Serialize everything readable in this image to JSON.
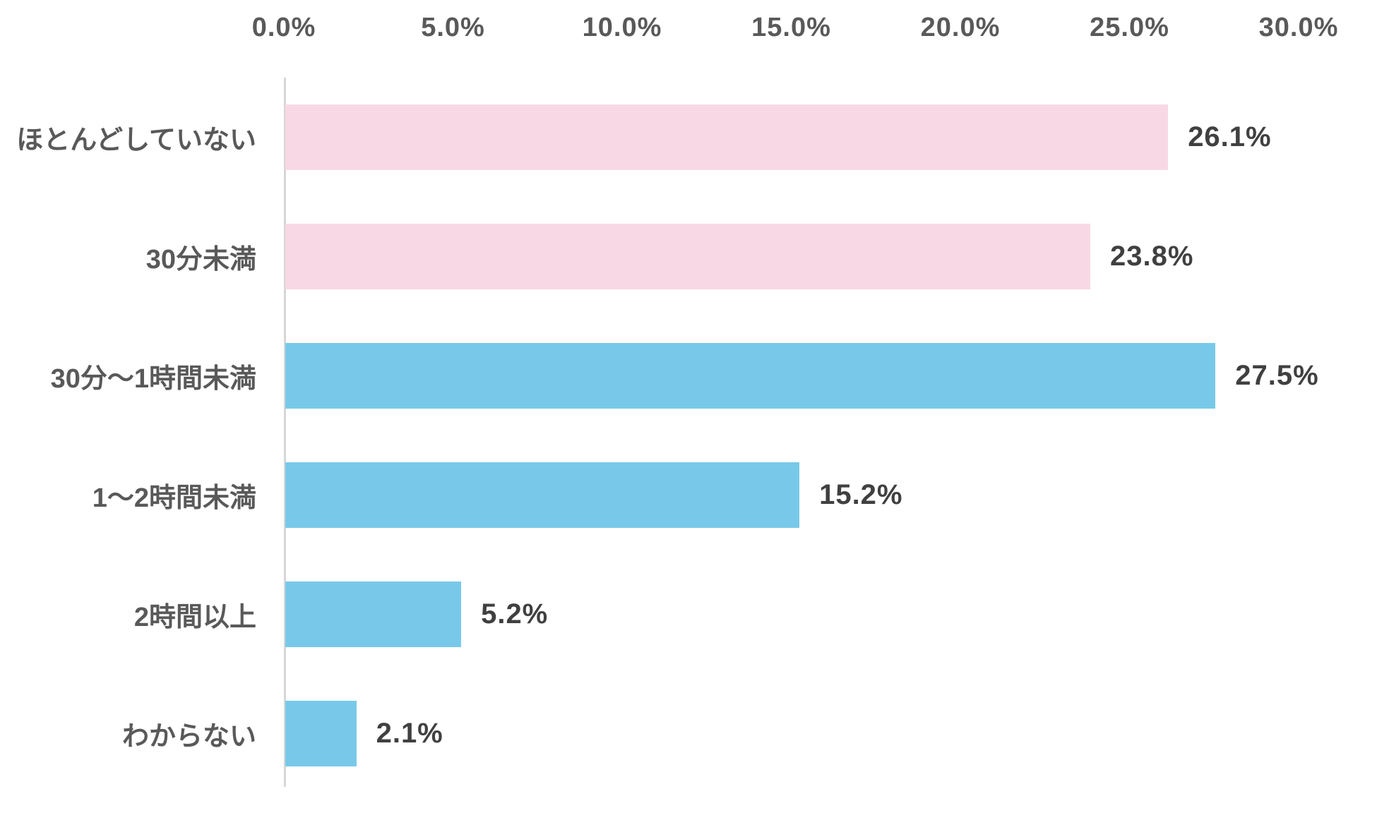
{
  "chart_data": {
    "type": "bar",
    "orientation": "horizontal",
    "title": "",
    "categories": [
      "ほとんどしていない",
      "30分未満",
      "30分～1時間未満",
      "1～2時間未満",
      "2時間以上",
      "わからない"
    ],
    "values": [
      26.1,
      23.8,
      27.5,
      15.2,
      5.2,
      2.1
    ],
    "value_labels": [
      "26.1%",
      "23.8%",
      "27.5%",
      "15.2%",
      "5.2%",
      "2.1%"
    ],
    "bar_colors": [
      "#F9D8E5",
      "#F9D8E5",
      "#78C9E9",
      "#78C9E9",
      "#78C9E9",
      "#78C9E9"
    ],
    "x_tick_labels": [
      "0.0%",
      "5.0%",
      "10.0%",
      "15.0%",
      "20.0%",
      "25.0%",
      "30.0%"
    ],
    "xlim": [
      0,
      30
    ],
    "xlabel": "",
    "ylabel": "",
    "grid": false,
    "legend": false,
    "axis_position": "top"
  },
  "colors": {
    "pink_bar": "#F9D8E5",
    "blue_bar": "#78C9E9",
    "axis_line": "#D6D6D6",
    "tick_text": "#595959",
    "category_text": "#595959",
    "value_text": "#404040",
    "background": "#FFFFFF"
  }
}
